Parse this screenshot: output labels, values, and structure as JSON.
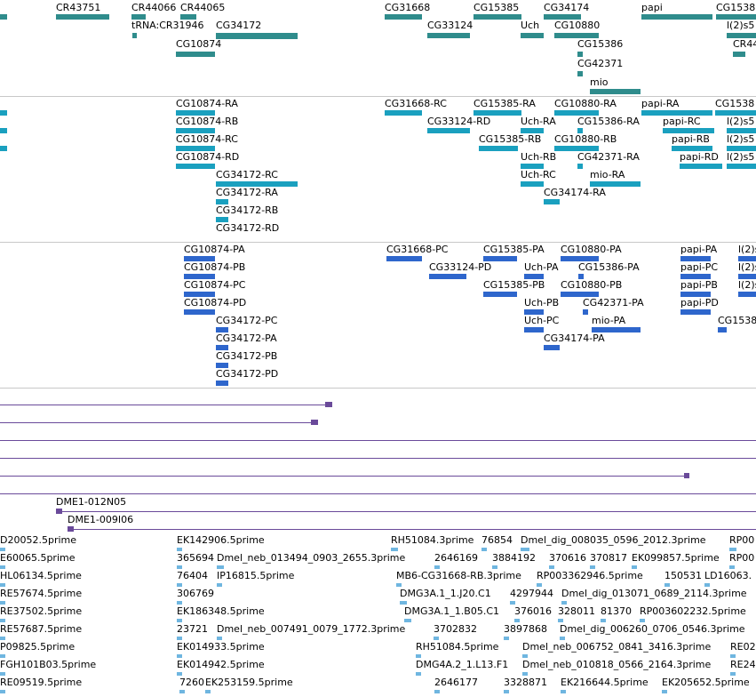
{
  "colors": {
    "gene": "#2f8c8c",
    "rna": "#1aa0bf",
    "protein": "#2e66cc",
    "clone": "#6a4a9a",
    "est": "#6fb6e0",
    "divider": "#c8c8c8"
  },
  "tracks": {
    "genes": {
      "labels": [
        "CR43751",
        "CR44066",
        "CR44065",
        "tRNA:CR31946",
        "CG34172",
        "CG10874",
        "CG31668",
        "CG15385",
        "CG34174",
        "CG33124",
        "Uch",
        "CG10880",
        "CG15386",
        "CG42371",
        "mio",
        "papi",
        "CG1538",
        "l(2)s5",
        "CR44"
      ]
    },
    "transcripts": {
      "labels": [
        "CG10874-RA",
        "CG10874-RB",
        "CG10874-RC",
        "CG10874-RD",
        "CG34172-RC",
        "CG34172-RA",
        "CG34172-RB",
        "CG34172-RD",
        "CG31668-RC",
        "CG33124-RD",
        "CG15385-RA",
        "CG15385-RB",
        "Uch-RA",
        "Uch-RB",
        "Uch-RC",
        "CG10880-RA",
        "CG10880-RB",
        "CG15386-RA",
        "CG42371-RA",
        "mio-RA",
        "CG34174-RA",
        "papi-RA",
        "papi-RC",
        "papi-RB",
        "papi-RD",
        "CG1538",
        "l(2)s5",
        "l(2)s5",
        "l(2)s5"
      ]
    },
    "proteins": {
      "labels": [
        "CG10874-PA",
        "CG10874-PB",
        "CG10874-PC",
        "CG10874-PD",
        "CG34172-PC",
        "CG34172-PA",
        "CG34172-PB",
        "CG34172-PD",
        "CG31668-PC",
        "CG33124-PD",
        "CG15385-PA",
        "CG15385-PB",
        "Uch-PA",
        "Uch-PB",
        "Uch-PC",
        "CG10880-PA",
        "CG10880-PB",
        "CG15386-PA",
        "CG42371-PA",
        "mio-PA",
        "CG34174-PA",
        "papi-PA",
        "papi-PC",
        "papi-PB",
        "papi-PD",
        "CG1538",
        "l(2)s",
        "l(2)s",
        "l(2)s"
      ]
    },
    "clones": {
      "labels": [
        "DME1-012N05",
        "DME1-009I06"
      ]
    },
    "ests": {
      "labels": [
        "D20052.5prime",
        "EK142906.5prime",
        "RH51084.3prime",
        "76854",
        "Dmel_dig_008035_0596_2012.3prime",
        "RP00",
        "E60065.5prime",
        "365694",
        "Dmel_neb_013494_0903_2655.3prime",
        "2646169",
        "3884192",
        "370616",
        "370817",
        "EK099857.5prime",
        "RP00",
        "HL06134.5prime",
        "76404",
        "IP16815.5prime",
        "MB6-CG31668-RB.3prime",
        "RP003362946.5prime",
        "150531",
        "LD16063.",
        "RE57674.5prime",
        "306769",
        "DMG3A.1_1.J20.C1",
        "4297944",
        "Dmel_dig_013071_0689_2114.3prime",
        "RE37502.5prime",
        "EK186348.5prime",
        "DMG3A.1_1.B05.C1",
        "376016",
        "328011",
        "81370",
        "RP003602232.5prime",
        "RE57687.5prime",
        "23721",
        "Dmel_neb_007491_0079_1772.3prime",
        "3702832",
        "3897868",
        "Dmel_dig_006260_0706_0546.3prime",
        "P09825.5prime",
        "EK014933.5prime",
        "RH51084.5prime",
        "Dmel_neb_006752_0841_3416.3prime",
        "RE02",
        "FGH101B03.5prime",
        "EK014942.5prime",
        "DMG4A.2_1.L13.F1",
        "Dmel_neb_010818_0566_2164.3prime",
        "RE24",
        "RE09519.5prime",
        "7260",
        "EK253159.5prime",
        "2646177",
        "3328871",
        "EK216644.5prime",
        "EK205652.5prime"
      ]
    }
  }
}
